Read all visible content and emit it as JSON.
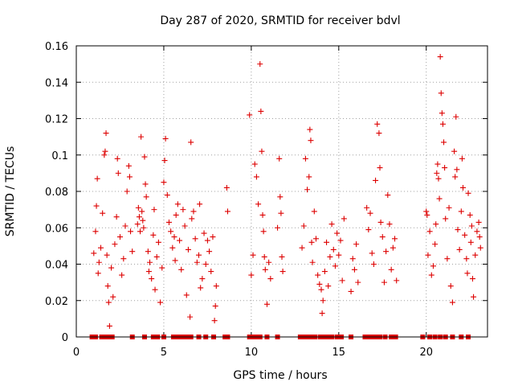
{
  "chart_data": {
    "type": "scatter",
    "title": "Day 287 of 2020, SRMTID for receiver bdvl",
    "xlabel": "GPS time / hours",
    "ylabel": "SRMTID / TECUs",
    "xlim": [
      0,
      23.5
    ],
    "ylim": [
      0,
      0.16
    ],
    "xticks": [
      0,
      5,
      10,
      15,
      20
    ],
    "xtick_labels": [
      "0",
      "5",
      "10",
      "15",
      "20"
    ],
    "yticks": [
      0,
      0.02,
      0.04,
      0.06,
      0.08,
      0.1,
      0.12,
      0.14,
      0.16
    ],
    "ytick_labels": [
      "0",
      "0.02",
      "0.04",
      "0.06",
      "0.08",
      "0.1",
      "0.12",
      "0.14",
      "0.16"
    ],
    "grid": true,
    "marker": "+",
    "color": "#dd0000",
    "series": [
      {
        "name": "SRMTID",
        "points": [
          [
            1.0,
            0.046
          ],
          [
            1.1,
            0.058
          ],
          [
            1.15,
            0.072
          ],
          [
            1.2,
            0.087
          ],
          [
            1.25,
            0.035
          ],
          [
            1.3,
            0.041
          ],
          [
            1.4,
            0.049
          ],
          [
            1.5,
            0.068
          ],
          [
            1.6,
            0.1
          ],
          [
            1.65,
            0.102
          ],
          [
            1.7,
            0.112
          ],
          [
            1.75,
            0.045
          ],
          [
            1.8,
            0.028
          ],
          [
            1.85,
            0.019
          ],
          [
            1.9,
            0.006
          ],
          [
            2.0,
            0.038
          ],
          [
            2.1,
            0.022
          ],
          [
            2.2,
            0.051
          ],
          [
            2.3,
            0.066
          ],
          [
            2.35,
            0.098
          ],
          [
            2.4,
            0.09
          ],
          [
            2.5,
            0.055
          ],
          [
            2.6,
            0.034
          ],
          [
            2.7,
            0.043
          ],
          [
            2.8,
            0.061
          ],
          [
            2.9,
            0.08
          ],
          [
            3.0,
            0.094
          ],
          [
            3.05,
            0.088
          ],
          [
            3.1,
            0.058
          ],
          [
            3.2,
            0.047
          ],
          [
            3.5,
            0.062
          ],
          [
            3.55,
            0.071
          ],
          [
            3.6,
            0.066
          ],
          [
            3.65,
            0.058
          ],
          [
            3.7,
            0.11
          ],
          [
            3.75,
            0.069
          ],
          [
            3.8,
            0.064
          ],
          [
            3.85,
            0.06
          ],
          [
            3.9,
            0.099
          ],
          [
            3.95,
            0.084
          ],
          [
            4.0,
            0.077
          ],
          [
            4.1,
            0.047
          ],
          [
            4.15,
            0.036
          ],
          [
            4.2,
            0.041
          ],
          [
            4.3,
            0.032
          ],
          [
            4.4,
            0.056
          ],
          [
            4.45,
            0.07
          ],
          [
            4.5,
            0.026
          ],
          [
            4.6,
            0.044
          ],
          [
            4.7,
            0.052
          ],
          [
            4.8,
            0.019
          ],
          [
            4.9,
            0.038
          ],
          [
            5.0,
            0.085
          ],
          [
            5.05,
            0.097
          ],
          [
            5.1,
            0.109
          ],
          [
            5.2,
            0.078
          ],
          [
            5.3,
            0.063
          ],
          [
            5.4,
            0.058
          ],
          [
            5.5,
            0.049
          ],
          [
            5.6,
            0.055
          ],
          [
            5.65,
            0.042
          ],
          [
            5.7,
            0.067
          ],
          [
            5.8,
            0.073
          ],
          [
            5.9,
            0.053
          ],
          [
            6.0,
            0.037
          ],
          [
            6.1,
            0.07
          ],
          [
            6.2,
            0.061
          ],
          [
            6.3,
            0.023
          ],
          [
            6.4,
            0.048
          ],
          [
            6.5,
            0.011
          ],
          [
            6.55,
            0.107
          ],
          [
            6.6,
            0.065
          ],
          [
            6.7,
            0.069
          ],
          [
            6.8,
            0.054
          ],
          [
            6.9,
            0.041
          ],
          [
            7.0,
            0.045
          ],
          [
            7.05,
            0.073
          ],
          [
            7.1,
            0.027
          ],
          [
            7.2,
            0.032
          ],
          [
            7.3,
            0.057
          ],
          [
            7.4,
            0.04
          ],
          [
            7.5,
            0.053
          ],
          [
            7.6,
            0.047
          ],
          [
            7.7,
            0.036
          ],
          [
            7.8,
            0.055
          ],
          [
            7.9,
            0.009
          ],
          [
            7.95,
            0.017
          ],
          [
            8.0,
            0.028
          ],
          [
            8.6,
            0.082
          ],
          [
            8.65,
            0.069
          ],
          [
            9.9,
            0.122
          ],
          [
            10.0,
            0.034
          ],
          [
            10.1,
            0.045
          ],
          [
            10.2,
            0.095
          ],
          [
            10.3,
            0.088
          ],
          [
            10.4,
            0.073
          ],
          [
            10.5,
            0.15
          ],
          [
            10.55,
            0.124
          ],
          [
            10.6,
            0.102
          ],
          [
            10.65,
            0.067
          ],
          [
            10.7,
            0.058
          ],
          [
            10.75,
            0.044
          ],
          [
            10.8,
            0.037
          ],
          [
            10.9,
            0.018
          ],
          [
            11.0,
            0.041
          ],
          [
            11.1,
            0.032
          ],
          [
            11.5,
            0.06
          ],
          [
            11.6,
            0.098
          ],
          [
            11.65,
            0.077
          ],
          [
            11.7,
            0.068
          ],
          [
            11.75,
            0.044
          ],
          [
            11.8,
            0.036
          ],
          [
            12.9,
            0.049
          ],
          [
            13.0,
            0.061
          ],
          [
            13.1,
            0.098
          ],
          [
            13.2,
            0.081
          ],
          [
            13.3,
            0.088
          ],
          [
            13.35,
            0.114
          ],
          [
            13.4,
            0.108
          ],
          [
            13.45,
            0.052
          ],
          [
            13.5,
            0.041
          ],
          [
            13.6,
            0.069
          ],
          [
            13.7,
            0.054
          ],
          [
            13.8,
            0.034
          ],
          [
            13.9,
            0.029
          ],
          [
            14.0,
            0.026
          ],
          [
            14.05,
            0.013
          ],
          [
            14.1,
            0.02
          ],
          [
            14.2,
            0.036
          ],
          [
            14.3,
            0.052
          ],
          [
            14.4,
            0.028
          ],
          [
            14.5,
            0.044
          ],
          [
            14.6,
            0.062
          ],
          [
            14.7,
            0.048
          ],
          [
            14.8,
            0.039
          ],
          [
            14.9,
            0.057
          ],
          [
            15.0,
            0.045
          ],
          [
            15.1,
            0.053
          ],
          [
            15.2,
            0.031
          ],
          [
            15.3,
            0.065
          ],
          [
            15.7,
            0.025
          ],
          [
            15.8,
            0.043
          ],
          [
            15.9,
            0.037
          ],
          [
            16.0,
            0.051
          ],
          [
            16.1,
            0.03
          ],
          [
            16.6,
            0.071
          ],
          [
            16.7,
            0.059
          ],
          [
            16.8,
            0.068
          ],
          [
            16.9,
            0.046
          ],
          [
            17.0,
            0.04
          ],
          [
            17.1,
            0.086
          ],
          [
            17.2,
            0.117
          ],
          [
            17.3,
            0.112
          ],
          [
            17.35,
            0.093
          ],
          [
            17.4,
            0.063
          ],
          [
            17.5,
            0.055
          ],
          [
            17.6,
            0.03
          ],
          [
            17.7,
            0.047
          ],
          [
            17.8,
            0.078
          ],
          [
            17.9,
            0.062
          ],
          [
            18.0,
            0.037
          ],
          [
            18.1,
            0.049
          ],
          [
            18.2,
            0.054
          ],
          [
            18.3,
            0.031
          ],
          [
            20.0,
            0.069
          ],
          [
            20.05,
            0.067
          ],
          [
            20.1,
            0.045
          ],
          [
            20.2,
            0.058
          ],
          [
            20.3,
            0.034
          ],
          [
            20.4,
            0.039
          ],
          [
            20.5,
            0.051
          ],
          [
            20.55,
            0.062
          ],
          [
            20.6,
            0.09
          ],
          [
            20.65,
            0.095
          ],
          [
            20.7,
            0.087
          ],
          [
            20.75,
            0.076
          ],
          [
            20.8,
            0.154
          ],
          [
            20.85,
            0.134
          ],
          [
            20.9,
            0.123
          ],
          [
            20.95,
            0.117
          ],
          [
            21.0,
            0.107
          ],
          [
            21.05,
            0.093
          ],
          [
            21.1,
            0.065
          ],
          [
            21.2,
            0.043
          ],
          [
            21.3,
            0.071
          ],
          [
            21.4,
            0.028
          ],
          [
            21.5,
            0.019
          ],
          [
            21.6,
            0.102
          ],
          [
            21.65,
            0.088
          ],
          [
            21.7,
            0.121
          ],
          [
            21.75,
            0.092
          ],
          [
            21.8,
            0.059
          ],
          [
            21.9,
            0.048
          ],
          [
            22.0,
            0.069
          ],
          [
            22.05,
            0.098
          ],
          [
            22.1,
            0.082
          ],
          [
            22.2,
            0.056
          ],
          [
            22.3,
            0.043
          ],
          [
            22.35,
            0.035
          ],
          [
            22.4,
            0.079
          ],
          [
            22.5,
            0.067
          ],
          [
            22.55,
            0.052
          ],
          [
            22.6,
            0.061
          ],
          [
            22.65,
            0.032
          ],
          [
            22.7,
            0.022
          ],
          [
            22.8,
            0.045
          ],
          [
            22.9,
            0.058
          ],
          [
            23.0,
            0.063
          ],
          [
            23.05,
            0.055
          ],
          [
            23.1,
            0.049
          ]
        ]
      }
    ],
    "baseline_marks": {
      "marker": "square",
      "y": 0,
      "x": [
        0.9,
        1.1,
        1.45,
        1.55,
        1.65,
        1.75,
        1.85,
        1.95,
        2.05,
        3.2,
        3.9,
        4.4,
        4.65,
        5.0,
        5.55,
        5.65,
        5.8,
        6.05,
        6.3,
        6.55,
        7.0,
        7.4,
        7.85,
        8.5,
        8.65,
        9.9,
        10.05,
        10.3,
        10.5,
        10.9,
        11.5,
        12.8,
        13.05,
        13.3,
        13.5,
        13.65,
        13.95,
        14.1,
        14.35,
        14.6,
        14.9,
        15.15,
        15.7,
        16.5,
        16.7,
        16.9,
        17.1,
        17.35,
        17.65,
        18.0,
        18.25,
        19.8,
        20.2,
        20.5,
        20.8,
        21.1,
        21.5,
        22.0,
        22.4
      ]
    }
  }
}
